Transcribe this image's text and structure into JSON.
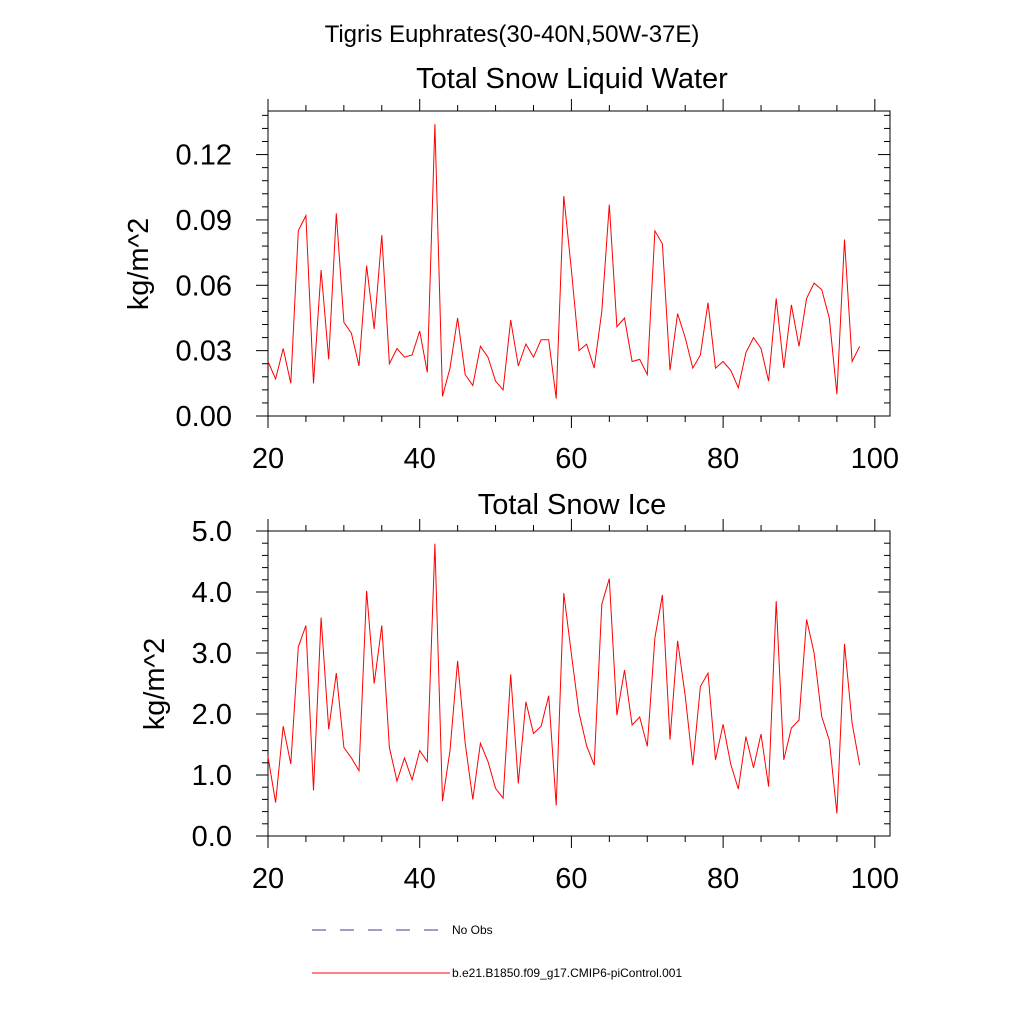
{
  "main_title": "Tigris Euphrates(30-40N,50W-37E)",
  "legend": {
    "items": [
      {
        "label": "No Obs",
        "color": "#3d3d8f",
        "style": "dashed"
      },
      {
        "label": "b.e21.B1850.f09_g17.CMIP6-piControl.001",
        "color": "#ff0000",
        "style": "solid"
      }
    ]
  },
  "chart_data": [
    {
      "type": "line",
      "title": "Total Snow Liquid Water",
      "xlabel": "",
      "ylabel": "kg/m^2",
      "xlim": [
        20,
        102
      ],
      "ylim": [
        0,
        0.14
      ],
      "xticks": [
        20,
        40,
        60,
        80,
        100
      ],
      "xtick_labels": [
        "20",
        "40",
        "60",
        "80",
        "100"
      ],
      "yticks": [
        0,
        0.03,
        0.06,
        0.09,
        0.12
      ],
      "ytick_labels": [
        "0.00",
        "0.03",
        "0.06",
        "0.09",
        "0.12"
      ],
      "grid": false,
      "series": [
        {
          "name": "b.e21.B1850.f09_g17.CMIP6-piControl.001",
          "color": "#ff0000",
          "x": [
            20,
            21,
            22,
            23,
            24,
            25,
            26,
            27,
            28,
            29,
            30,
            31,
            32,
            33,
            34,
            35,
            36,
            37,
            38,
            39,
            40,
            41,
            42,
            43,
            44,
            45,
            46,
            47,
            48,
            49,
            50,
            51,
            52,
            53,
            54,
            55,
            56,
            57,
            58,
            59,
            60,
            61,
            62,
            63,
            64,
            65,
            66,
            67,
            68,
            69,
            70,
            71,
            72,
            73,
            74,
            75,
            76,
            77,
            78,
            79,
            80,
            81,
            82,
            83,
            84,
            85,
            86,
            87,
            88,
            89,
            90,
            91,
            92,
            93,
            94,
            95,
            96,
            97,
            98
          ],
          "values": [
            0.025,
            0.017,
            0.031,
            0.015,
            0.085,
            0.092,
            0.015,
            0.067,
            0.026,
            0.093,
            0.043,
            0.038,
            0.023,
            0.069,
            0.04,
            0.083,
            0.024,
            0.031,
            0.027,
            0.028,
            0.039,
            0.02,
            0.134,
            0.009,
            0.022,
            0.045,
            0.019,
            0.014,
            0.032,
            0.027,
            0.016,
            0.012,
            0.044,
            0.023,
            0.033,
            0.027,
            0.035,
            0.035,
            0.008,
            0.101,
            0.067,
            0.03,
            0.033,
            0.022,
            0.048,
            0.097,
            0.041,
            0.045,
            0.025,
            0.026,
            0.019,
            0.085,
            0.079,
            0.021,
            0.047,
            0.036,
            0.022,
            0.028,
            0.052,
            0.022,
            0.025,
            0.021,
            0.013,
            0.029,
            0.036,
            0.031,
            0.016,
            0.054,
            0.022,
            0.051,
            0.032,
            0.054,
            0.061,
            0.058,
            0.045,
            0.01,
            0.081,
            0.025,
            0.032
          ]
        }
      ]
    },
    {
      "type": "line",
      "title": "Total Snow Ice",
      "xlabel": "",
      "ylabel": "kg/m^2",
      "xlim": [
        20,
        102
      ],
      "ylim": [
        0,
        5
      ],
      "xticks": [
        20,
        40,
        60,
        80,
        100
      ],
      "xtick_labels": [
        "20",
        "40",
        "60",
        "80",
        "100"
      ],
      "yticks": [
        0,
        1,
        2,
        3,
        4,
        5
      ],
      "ytick_labels": [
        "0.0",
        "1.0",
        "2.0",
        "3.0",
        "4.0",
        "5.0"
      ],
      "grid": false,
      "series": [
        {
          "name": "b.e21.B1850.f09_g17.CMIP6-piControl.001",
          "color": "#ff0000",
          "x": [
            20,
            21,
            22,
            23,
            24,
            25,
            26,
            27,
            28,
            29,
            30,
            31,
            32,
            33,
            34,
            35,
            36,
            37,
            38,
            39,
            40,
            41,
            42,
            43,
            44,
            45,
            46,
            47,
            48,
            49,
            50,
            51,
            52,
            53,
            54,
            55,
            56,
            57,
            58,
            59,
            60,
            61,
            62,
            63,
            64,
            65,
            66,
            67,
            68,
            69,
            70,
            71,
            72,
            73,
            74,
            75,
            76,
            77,
            78,
            79,
            80,
            81,
            82,
            83,
            84,
            85,
            86,
            87,
            88,
            89,
            90,
            91,
            92,
            93,
            94,
            95,
            96,
            97,
            98
          ],
          "values": [
            1.3,
            0.55,
            1.8,
            1.18,
            3.1,
            3.45,
            0.75,
            3.58,
            1.75,
            2.67,
            1.45,
            1.28,
            1.07,
            4.02,
            2.5,
            3.45,
            1.45,
            0.9,
            1.28,
            0.92,
            1.4,
            1.22,
            4.79,
            0.57,
            1.4,
            2.87,
            1.52,
            0.6,
            1.52,
            1.22,
            0.78,
            0.62,
            2.65,
            0.86,
            2.2,
            1.68,
            1.8,
            2.3,
            0.5,
            3.98,
            2.98,
            2.02,
            1.48,
            1.16,
            3.8,
            4.22,
            1.98,
            2.72,
            1.82,
            1.95,
            1.47,
            3.25,
            3.95,
            1.58,
            3.2,
            2.3,
            1.16,
            2.45,
            2.67,
            1.25,
            1.83,
            1.18,
            0.77,
            1.63,
            1.12,
            1.67,
            0.81,
            3.85,
            1.25,
            1.77,
            1.9,
            3.55,
            3.0,
            1.96,
            1.57,
            0.37,
            3.15,
            1.85,
            1.16
          ]
        }
      ]
    }
  ]
}
